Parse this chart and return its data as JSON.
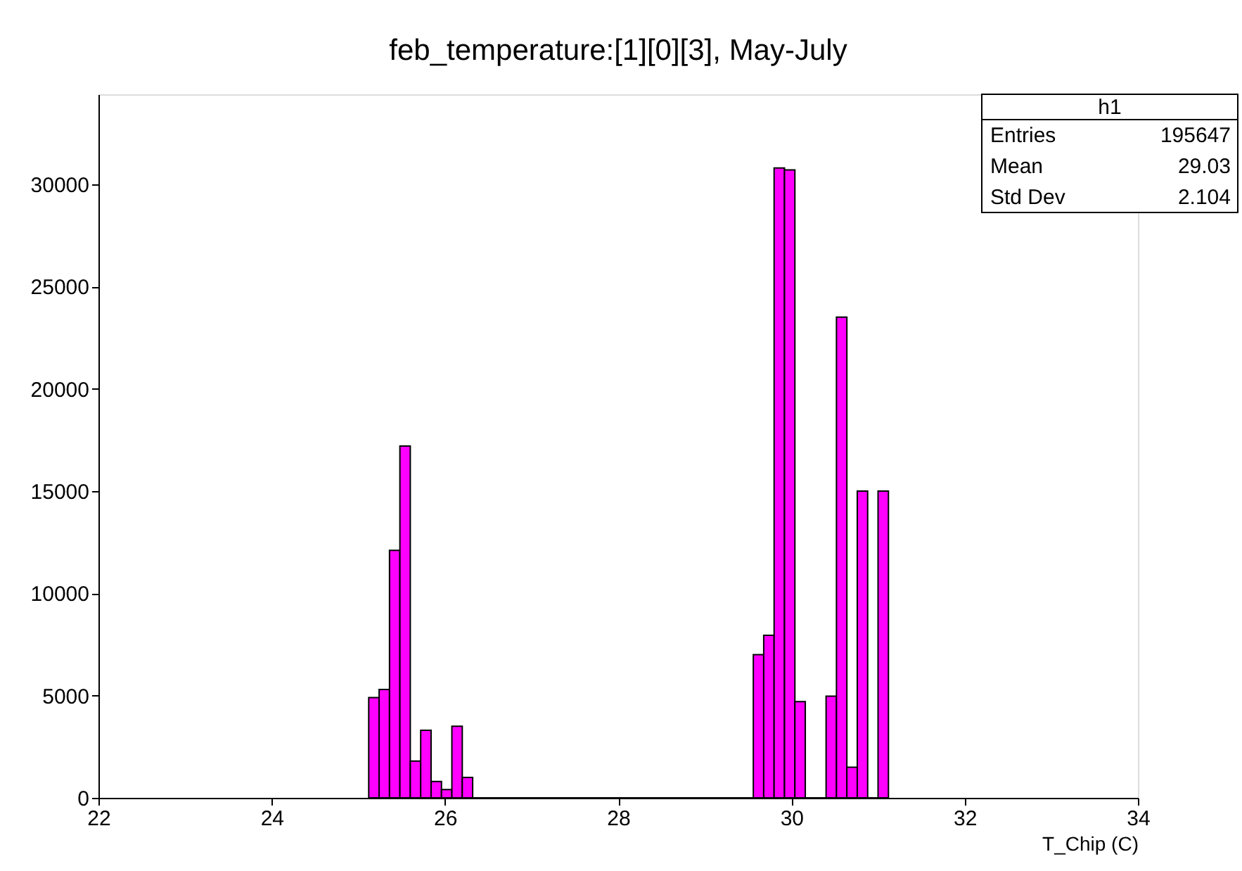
{
  "chart_data": {
    "type": "histogram",
    "title": "feb_temperature:[1][0][3], May-July",
    "xlabel": "T_Chip (C)",
    "bins": [
      25.12,
      25.24,
      25.36,
      25.48,
      25.6,
      25.72,
      25.84,
      25.96,
      26.08,
      26.2,
      26.32,
      29.56,
      29.68,
      29.8,
      29.92,
      30.04,
      30.16,
      30.4,
      30.52,
      30.64,
      30.76,
      30.88,
      31.0,
      31.12
    ],
    "values": [
      4900,
      5300,
      12100,
      17200,
      1800,
      3300,
      800,
      400,
      3500,
      1000,
      0,
      7000,
      7950,
      30800,
      30700,
      4700,
      0,
      4970,
      23500,
      1500,
      15000,
      0,
      15000
    ],
    "color": "#ff00ff",
    "xlim": [
      22,
      34
    ],
    "xticks": [
      22,
      24,
      26,
      28,
      30,
      32,
      34
    ],
    "ylim": [
      0,
      34400
    ],
    "yticks": [
      0,
      5000,
      10000,
      15000,
      20000,
      25000,
      30000
    ],
    "grid": false,
    "annotations": [
      "h1",
      "Entries",
      "195647",
      "Mean",
      "29.03",
      "Std Dev",
      "2.104"
    ]
  }
}
